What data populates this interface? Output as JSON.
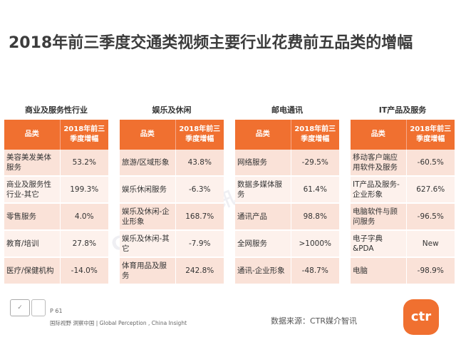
{
  "title": "2018年前三季度交通类视频主要行业花费前五品类的增幅",
  "header_col1": "品类",
  "header_col2": "2018年前三季度增幅",
  "panels": [
    {
      "category": "商业及服务性行业",
      "rows": [
        {
          "name": "美容美发美体服务",
          "value": "53.2%"
        },
        {
          "name": "商业及服务性行业-其它",
          "value": "199.3%"
        },
        {
          "name": "零售服务",
          "value": "4.0%"
        },
        {
          "name": "教育/培训",
          "value": "27.8%"
        },
        {
          "name": "医疗/保健机构",
          "value": "-14.0%"
        }
      ]
    },
    {
      "category": "娱乐及休闲",
      "rows": [
        {
          "name": "旅游/区域形象",
          "value": "43.8%"
        },
        {
          "name": "娱乐休闲服务",
          "value": "-6.3%"
        },
        {
          "name": "娱乐及休闲-企业形象",
          "value": "168.7%"
        },
        {
          "name": "娱乐及休闲-其它",
          "value": "-7.9%"
        },
        {
          "name": "体育用品及服务",
          "value": "242.8%"
        }
      ]
    },
    {
      "category": "邮电通讯",
      "rows": [
        {
          "name": "网络服务",
          "value": "-29.5%"
        },
        {
          "name": "数据多媒体服务",
          "value": "61.4%"
        },
        {
          "name": "通讯产品",
          "value": "98.8%"
        },
        {
          "name": "全网服务",
          "value": ">1000%"
        },
        {
          "name": "通讯-企业形象",
          "value": "-48.7%"
        }
      ]
    },
    {
      "category": "IT产品及服务",
      "rows": [
        {
          "name": "移动客户端应用软件及服务",
          "value": "-60.5%"
        },
        {
          "name": "IT产品及服务-企业形象",
          "value": "627.6%"
        },
        {
          "name": "电脑软件与顾问服务",
          "value": "-96.5%"
        },
        {
          "name": "电子字典&PDA",
          "value": "New"
        },
        {
          "name": "电脑",
          "value": "-98.9%"
        }
      ]
    }
  ],
  "watermark": "CTR媒体智讯",
  "footer": {
    "page": "P 61",
    "tagline": "国际视野 洞察中国 | Global Perception , China Insight",
    "source": "数据来源：CTR媒介智讯",
    "brand": "ctr"
  },
  "colors": {
    "header_orange": "#f07030",
    "row_light": "#fdf1ec",
    "row_dark": "#fae2d8"
  }
}
